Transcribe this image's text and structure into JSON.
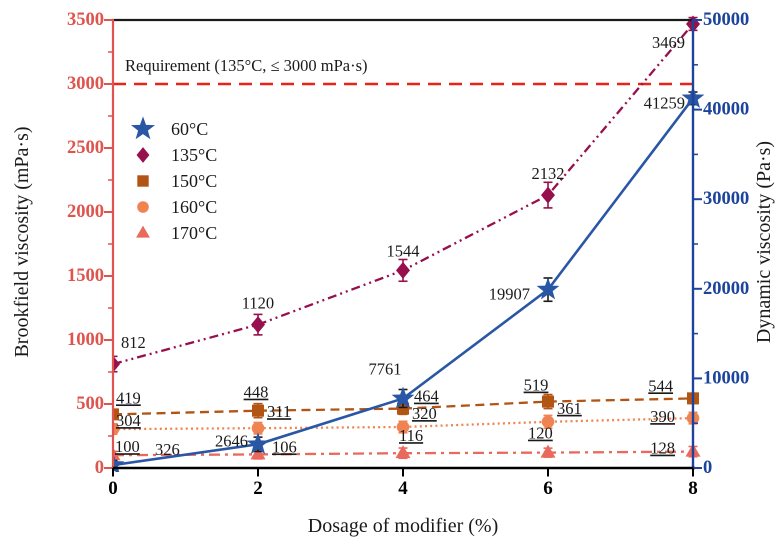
{
  "chart_data": {
    "type": "line",
    "title": "",
    "xlabel": "Dosage of modifier (%)",
    "ylabel_left": "Brookfield viscosity (mPa·s)",
    "ylabel_right": "Dynamic viscosity (Pa·s)",
    "x": [
      0,
      2,
      4,
      6,
      8
    ],
    "xlim": [
      0,
      8
    ],
    "ylim_left": [
      0,
      3500
    ],
    "ylim_right": [
      0,
      50000
    ],
    "xticks": [
      0,
      2,
      4,
      6,
      8
    ],
    "yticks_left": [
      0,
      500,
      1000,
      1500,
      2000,
      2500,
      3000,
      3500
    ],
    "yticks_left_minor": [
      250,
      750,
      1250,
      1750,
      2250,
      2750,
      3250
    ],
    "yticks_right": [
      0,
      10000,
      20000,
      30000,
      40000,
      50000
    ],
    "yticks_right_minor": [
      5000,
      15000,
      25000,
      35000,
      45000
    ],
    "grid": false,
    "legend_position": "upper-left-inside",
    "axis_colors": {
      "left": "#e0544e",
      "right": "#1c449c",
      "x": "#000000",
      "frame_top": "#1a1a1a"
    },
    "reference_line": {
      "axis": "left",
      "value": 3000,
      "label": "Requirement (135°C, ≤ 3000 mPa·s)",
      "color": "#ea2318",
      "style": "dashed"
    },
    "series": [
      {
        "name": "60°C",
        "axis": "right",
        "marker": "star",
        "line_style": "solid",
        "color": "#2a57a5",
        "error_color": "#1a1a1a",
        "dash": "",
        "width": 2.6,
        "values": [
          326,
          2646,
          7761,
          19907,
          41259
        ],
        "errors": [
          500,
          800,
          1000,
          1300,
          700
        ],
        "labels_underlined": false,
        "label_pos": [
          [
            42,
            -10,
            "start"
          ],
          [
            -10,
            2,
            "end"
          ],
          [
            -18,
            -24,
            "middle"
          ],
          [
            -18,
            10,
            "end"
          ],
          [
            -8,
            10,
            "end"
          ]
        ]
      },
      {
        "name": "135°C",
        "axis": "left",
        "marker": "diamond",
        "line_style": "dash-dot-dot",
        "color": "#96104d",
        "error_color": "#96104d",
        "dash": "9 4 2 4 2 4",
        "width": 2.3,
        "values": [
          812,
          1120,
          1544,
          2132,
          3469
        ],
        "errors": [
          60,
          80,
          85,
          100,
          50
        ],
        "labels_underlined": false,
        "label_pos": [
          [
            8,
            -16,
            "start"
          ],
          [
            0,
            -16,
            "middle"
          ],
          [
            0,
            -14,
            "middle"
          ],
          [
            0,
            -16,
            "middle"
          ],
          [
            -8,
            24,
            "end"
          ]
        ]
      },
      {
        "name": "150°C",
        "axis": "left",
        "marker": "square",
        "line_style": "dashed",
        "color": "#b25413",
        "error_color": "#b25413",
        "dash": "9 5.5",
        "width": 2.3,
        "values": [
          419,
          448,
          464,
          519,
          544
        ],
        "errors": [
          35,
          55,
          45,
          55,
          40
        ],
        "labels_underlined": true,
        "label_pos": [
          [
            3,
            -11,
            "start"
          ],
          [
            -2,
            -13,
            "middle"
          ],
          [
            11,
            -7,
            "start"
          ],
          [
            -12,
            -11,
            "middle"
          ],
          [
            -20,
            -7,
            "end"
          ]
        ]
      },
      {
        "name": "160°C",
        "axis": "left",
        "marker": "circle",
        "line_style": "dotted",
        "color": "#f08352",
        "error_color": "#f08352",
        "dash": "2 3.2",
        "width": 2.3,
        "values": [
          304,
          311,
          320,
          361,
          390
        ],
        "errors": [
          40,
          45,
          45,
          50,
          45
        ],
        "labels_underlined": true,
        "label_pos": [
          [
            3,
            -3,
            "start"
          ],
          [
            9,
            -11,
            "start"
          ],
          [
            9,
            -8,
            "start"
          ],
          [
            9,
            -8,
            "start"
          ],
          [
            -18,
            4,
            "end"
          ]
        ]
      },
      {
        "name": "170°C",
        "axis": "left",
        "marker": "triangle",
        "line_style": "dash-dot",
        "color": "#e9695c",
        "error_color": "#e9695c",
        "dash": "11 5 3 5",
        "width": 2.3,
        "values": [
          100,
          106,
          116,
          120,
          128
        ],
        "errors": [
          30,
          35,
          40,
          35,
          40
        ],
        "labels_underlined": true,
        "label_pos": [
          [
            2,
            -3,
            "start"
          ],
          [
            14,
            -2,
            "start"
          ],
          [
            -4,
            -12,
            "start"
          ],
          [
            -20,
            -14,
            "start"
          ],
          [
            -18,
            2,
            "end"
          ]
        ]
      }
    ]
  }
}
